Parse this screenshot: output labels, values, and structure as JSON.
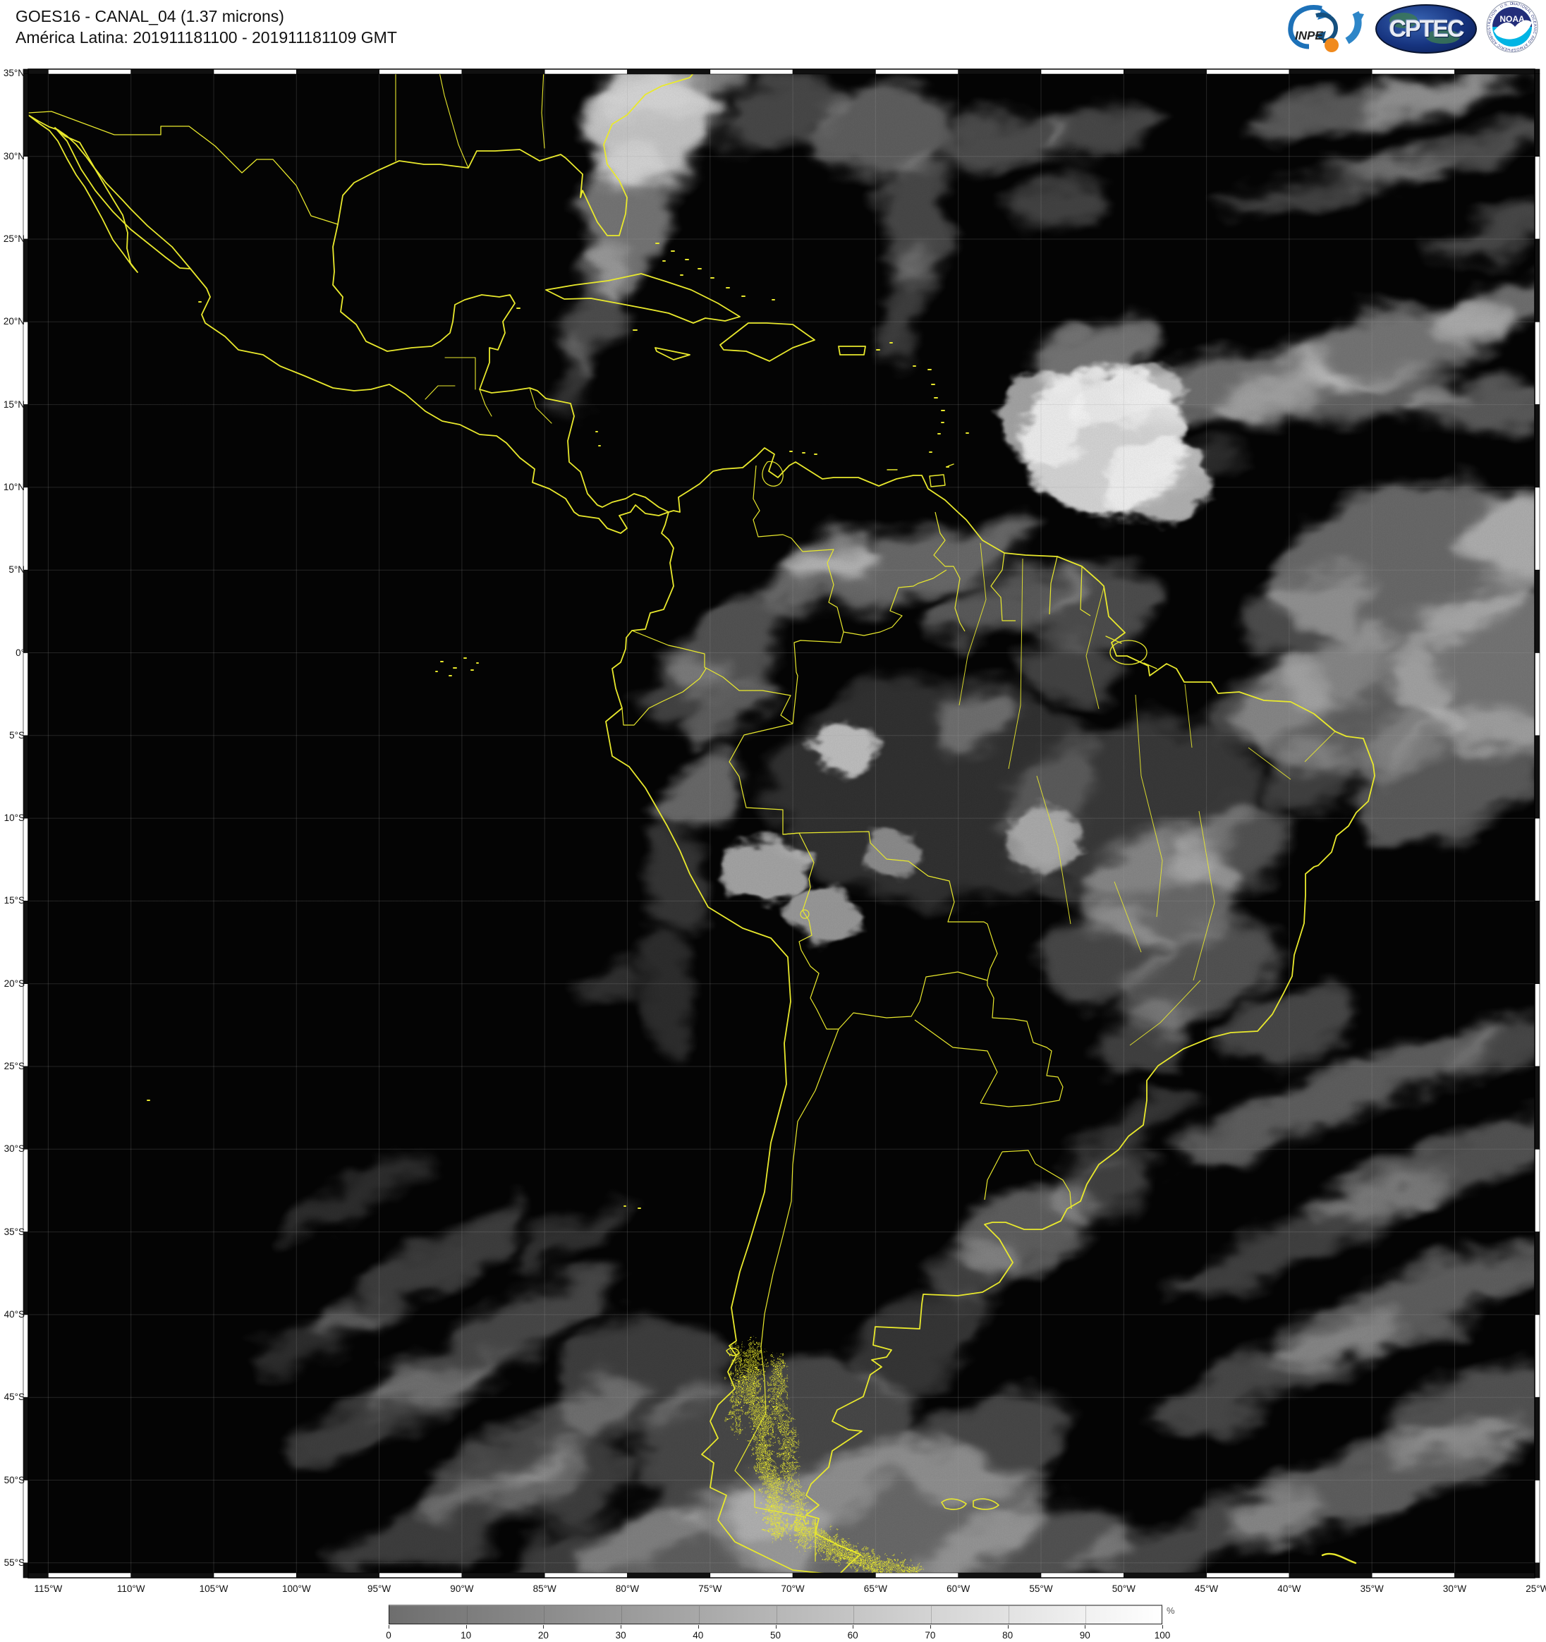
{
  "header": {
    "title_line1": "GOES16 - CANAL_04 (1.37 microns)",
    "title_line2": "América Latina: 201911181100 - 201911181109 GMT"
  },
  "logos": {
    "inpe_label": "INPE",
    "cptec_label": "CPTEC",
    "noaa_label": "NOAA",
    "noaa_ring_text": "NATIONAL OCEANIC AND ATMOSPHERIC ADMINISTRATION · U.S. DEPARTMENT OF COMMERCE"
  },
  "map": {
    "lat_labels": [
      "35°N",
      "30°N",
      "25°N",
      "20°N",
      "15°N",
      "10°N",
      "5°N",
      "0°",
      "5°S",
      "10°S",
      "15°S",
      "20°S",
      "25°S",
      "30°S",
      "35°S",
      "40°S",
      "45°S",
      "50°S",
      "55°S"
    ],
    "lon_labels": [
      "115°W",
      "110°W",
      "105°W",
      "100°W",
      "95°W",
      "90°W",
      "85°W",
      "80°W",
      "75°W",
      "70°W",
      "65°W",
      "60°W",
      "55°W",
      "50°W",
      "45°W",
      "40°W",
      "35°W",
      "30°W",
      "25°W"
    ],
    "satellite": "GOES16",
    "channel": "CANAL_04",
    "wavelength": "1.37 microns",
    "region": "América Latina",
    "time_range_gmt": "201911181100 - 201911181109"
  },
  "colorbar": {
    "ticks": [
      0,
      10,
      20,
      30,
      40,
      50,
      60,
      70,
      80,
      90,
      100
    ],
    "unit": "%",
    "gradient_start": "#6e6e6e",
    "gradient_end": "#ffffff"
  },
  "colors": {
    "coastline": "#e9e92c",
    "map_background": "#050505",
    "page_background": "#ffffff"
  }
}
